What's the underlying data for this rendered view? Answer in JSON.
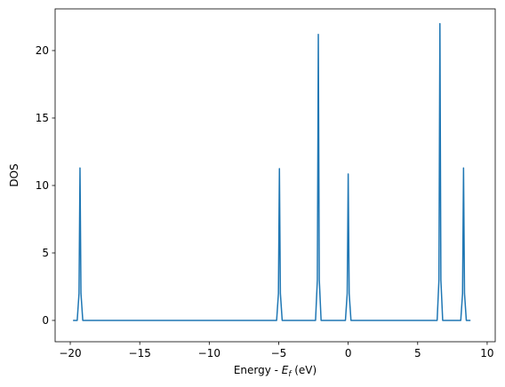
{
  "chart_data": {
    "type": "line",
    "xlabel": {
      "prefix": "Energy - ",
      "symbol": "E",
      "subscript": "f",
      "suffix": " (eV)"
    },
    "ylabel": "DOS",
    "x": [
      -19.8,
      -19.5,
      -19.37,
      -19.3,
      -19.23,
      -19.1,
      -5.15,
      -5.02,
      -4.95,
      -4.88,
      -4.75,
      -2.35,
      -2.22,
      -2.15,
      -2.08,
      -1.95,
      -0.2,
      -0.07,
      0,
      0.07,
      0.2,
      6.4,
      6.53,
      6.6,
      6.67,
      6.8,
      8.1,
      8.23,
      8.3,
      8.37,
      8.5,
      8.8
    ],
    "series": [
      {
        "color": "#1f77b4",
        "values": [
          0,
          0,
          2,
          11.3,
          2,
          0,
          0,
          2,
          11.25,
          2,
          0,
          0,
          3,
          21.2,
          3,
          0,
          0,
          2,
          10.85,
          2,
          0,
          0,
          3,
          22,
          3,
          0,
          0,
          2,
          11.3,
          2,
          0,
          0
        ]
      }
    ],
    "xlim": [
      -21.09,
      10.58
    ],
    "ylim": [
      -1.58,
      23.09
    ],
    "xticks": [
      {
        "value": -20,
        "label": "−20"
      },
      {
        "value": -15,
        "label": "−15"
      },
      {
        "value": -10,
        "label": "−10"
      },
      {
        "value": -5,
        "label": "−5"
      },
      0,
      5,
      10
    ],
    "yticks": [
      0,
      5,
      10,
      15,
      20
    ]
  }
}
